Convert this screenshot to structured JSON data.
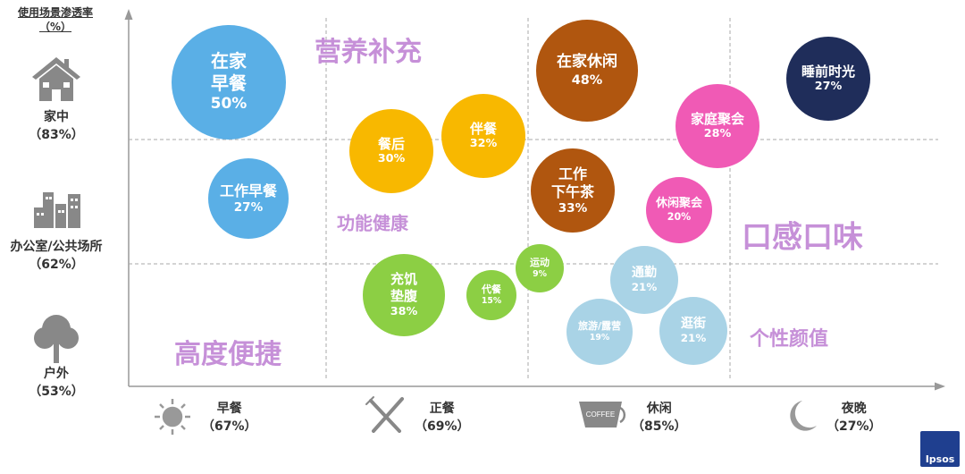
{
  "chart_data": {
    "type": "bubble",
    "y_title": "使用场景渗透率",
    "y_unit": "（%）",
    "y_categories": [
      {
        "label": "家中",
        "value": "（83%）",
        "icon": "house-icon"
      },
      {
        "label": "办公室/公共场所",
        "value": "（62%）",
        "icon": "office-building-icon"
      },
      {
        "label": "户外",
        "value": "（53%）",
        "icon": "tree-icon"
      }
    ],
    "x_categories": [
      {
        "label": "早餐",
        "value": "（67%）",
        "icon": "sun-icon"
      },
      {
        "label": "正餐",
        "value": "（69%）",
        "icon": "fork-knife-icon"
      },
      {
        "label": "休闲",
        "value": "（85%）",
        "icon": "coffee-cup-icon",
        "icon_text": "COFFEE"
      },
      {
        "label": "夜晚",
        "value": "（27%）",
        "icon": "moon-icon"
      }
    ],
    "need_labels": [
      "营养补充",
      "功能健康",
      "口感口味",
      "个性颜值",
      "高度便捷"
    ],
    "bubbles": [
      {
        "lines": [
          "在家",
          "早餐"
        ],
        "value": "50%",
        "place": "家中",
        "time": "早餐",
        "color": "#5aafe6"
      },
      {
        "lines": [
          "工作早餐"
        ],
        "value": "27%",
        "place": "办公室/公共场所",
        "time": "早餐",
        "color": "#5aafe6"
      },
      {
        "lines": [
          "餐后"
        ],
        "value": "30%",
        "place": "家中/办公室",
        "time": "正餐",
        "color": "#f8b800"
      },
      {
        "lines": [
          "伴餐"
        ],
        "value": "32%",
        "place": "家中/办公室",
        "time": "正餐",
        "color": "#f8b800"
      },
      {
        "lines": [
          "在家休闲"
        ],
        "value": "48%",
        "place": "家中",
        "time": "休闲",
        "color": "#b0560f"
      },
      {
        "lines": [
          "工作",
          "下午茶"
        ],
        "value": "33%",
        "place": "办公室/公共场所",
        "time": "休闲",
        "color": "#b0560f"
      },
      {
        "lines": [
          "睡前时光"
        ],
        "value": "27%",
        "place": "家中",
        "time": "夜晚",
        "color": "#1f2d5a"
      },
      {
        "lines": [
          "家庭聚会"
        ],
        "value": "28%",
        "place": "家中",
        "time": "休闲/夜晚",
        "color": "#f05ab5"
      },
      {
        "lines": [
          "休闲聚会"
        ],
        "value": "20%",
        "place": "办公室/公共场所",
        "time": "休闲",
        "color": "#f05ab5"
      },
      {
        "lines": [
          "充饥",
          "垫腹"
        ],
        "value": "38%",
        "place": "户外",
        "time": "正餐",
        "color": "#8ccf44"
      },
      {
        "lines": [
          "代餐"
        ],
        "value": "15%",
        "place": "户外",
        "time": "正餐",
        "color": "#8ccf44"
      },
      {
        "lines": [
          "运动"
        ],
        "value": "9%",
        "place": "户外",
        "time": "休闲",
        "color": "#8ccf44"
      },
      {
        "lines": [
          "通勤"
        ],
        "value": "21%",
        "place": "户外",
        "time": "休闲",
        "color": "#a9d3e6"
      },
      {
        "lines": [
          "旅游/露营"
        ],
        "value": "19%",
        "place": "户外",
        "time": "休闲",
        "color": "#a9d3e6"
      },
      {
        "lines": [
          "逛街"
        ],
        "value": "21%",
        "place": "户外",
        "time": "休闲",
        "color": "#a9d3e6"
      }
    ]
  },
  "logo": "Ipsos"
}
